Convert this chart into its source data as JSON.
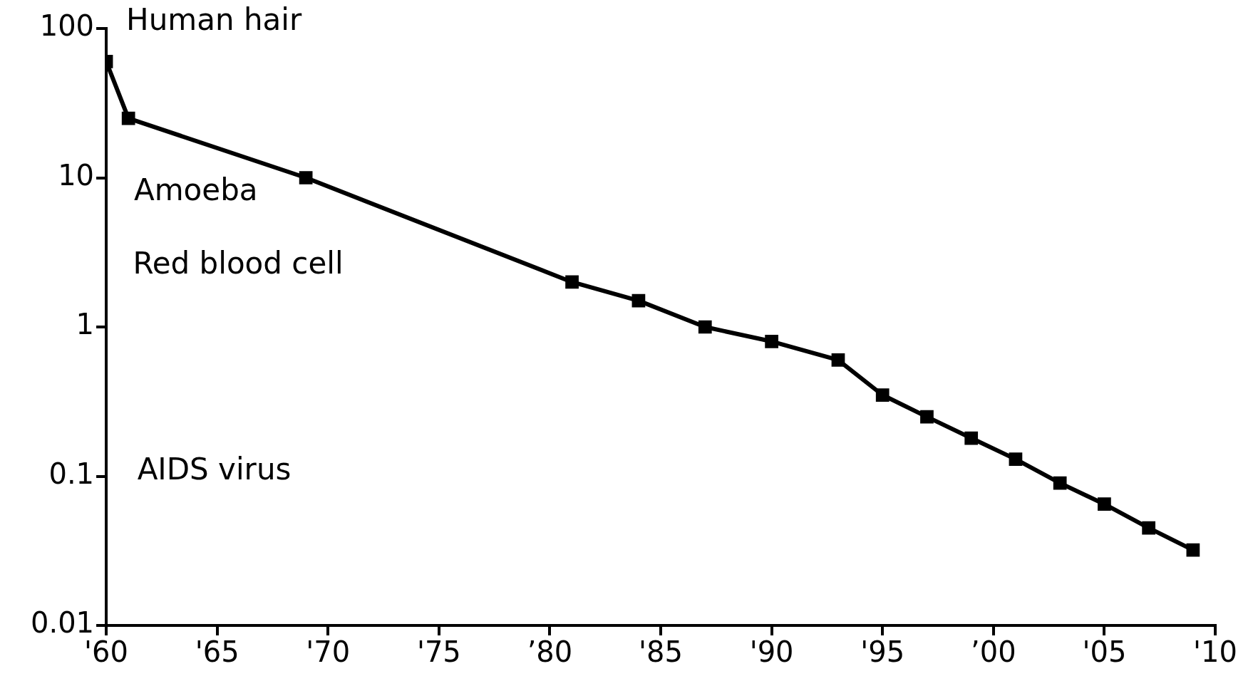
{
  "chart_data": {
    "type": "line",
    "log": "y",
    "grid": false,
    "marker": "square",
    "line_style": "solid",
    "x": [
      1960,
      1961,
      1969,
      1981,
      1984,
      1987,
      1990,
      1993,
      1995,
      1997,
      1999,
      2001,
      2003,
      2005,
      2007,
      2009
    ],
    "series": [
      {
        "color": "#000000",
        "values": [
          60,
          25,
          10,
          2,
          1.5,
          1,
          0.8,
          0.6,
          0.35,
          0.25,
          0.18,
          0.13,
          0.09,
          0.065,
          0.045,
          0.032
        ]
      }
    ],
    "xlim": [
      1960,
      2010
    ],
    "xticks": [
      {
        "value": 1960,
        "label": "'60"
      },
      {
        "value": 1965,
        "label": "'65"
      },
      {
        "value": 1970,
        "label": "'70"
      },
      {
        "value": 1975,
        "label": "'75"
      },
      {
        "value": 1980,
        "label": "’80"
      },
      {
        "value": 1985,
        "label": "'85"
      },
      {
        "value": 1990,
        "label": "'90"
      },
      {
        "value": 1995,
        "label": "'95"
      },
      {
        "value": 2000,
        "label": "’00"
      },
      {
        "value": 2005,
        "label": "'05"
      },
      {
        "value": 2010,
        "label": "'10"
      }
    ],
    "ylim": [
      0.01,
      100
    ],
    "yticks": [
      {
        "value": 0.01,
        "label": "0.01"
      },
      {
        "value": 0.1,
        "label": "0.1"
      },
      {
        "value": 1,
        "label": "1"
      },
      {
        "value": 10,
        "label": "10"
      },
      {
        "value": 100,
        "label": "100"
      }
    ],
    "annotations": [
      "Human hair",
      "Amoeba",
      "Red blood cell",
      "AIDS virus"
    ]
  }
}
